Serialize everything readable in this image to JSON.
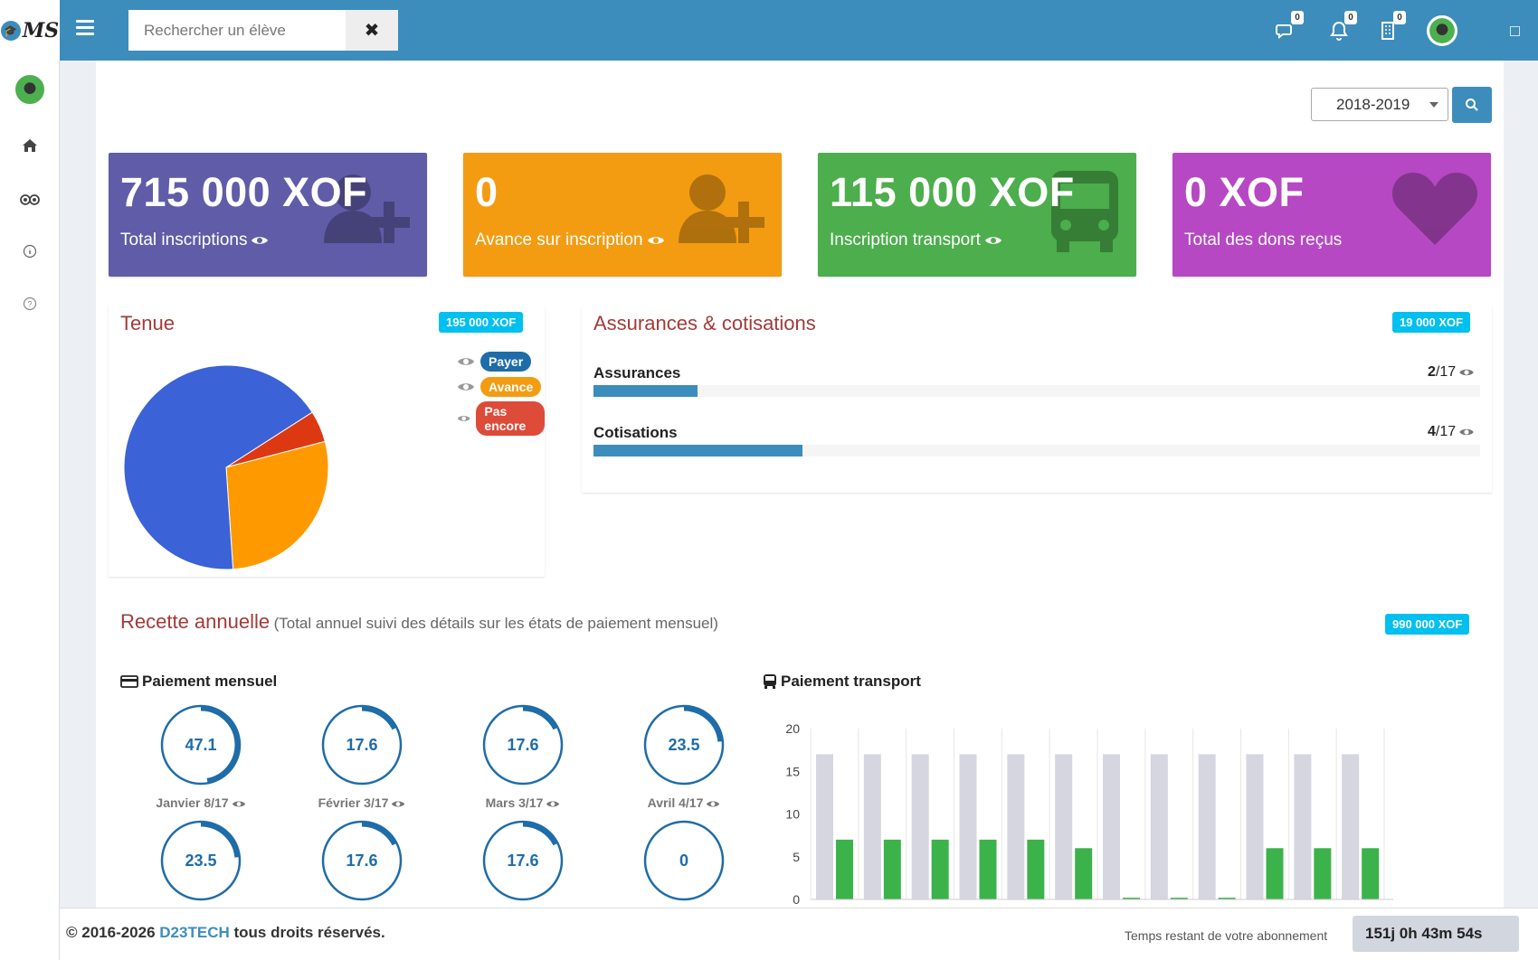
{
  "brand": {
    "logo_text": "MS"
  },
  "header": {
    "search_placeholder": "Rechercher un élève",
    "badges": {
      "messages": "0",
      "notifications": "0",
      "tasks": "0"
    }
  },
  "filter": {
    "year": "2018-2019"
  },
  "stats": [
    {
      "value": "715 000 XOF",
      "label": "Total inscriptions",
      "color": "#605ca8",
      "icon": "user-plus-icon"
    },
    {
      "value": "0",
      "label": "Avance sur inscription",
      "color": "#f39c12",
      "icon": "user-plus-icon"
    },
    {
      "value": "115 000 XOF",
      "label": "Inscription transport",
      "color": "#4cae4c",
      "icon": "bus-icon"
    },
    {
      "value": "0 XOF",
      "label": "Total des dons reçus",
      "color": "#b648c4",
      "icon": "heart-icon"
    }
  ],
  "tenue": {
    "title": "Tenue",
    "badge": "195 000 XOF",
    "legend": [
      {
        "label": "Payer",
        "color": "#1e6ca8"
      },
      {
        "label": "Avance",
        "color": "#f39c12"
      },
      {
        "label": "Pas encore",
        "color": "#dd4b39"
      }
    ],
    "chart_data": {
      "type": "pie",
      "slices": [
        {
          "name": "Payer",
          "value": 67,
          "color": "#3b62d6"
        },
        {
          "name": "Avance",
          "value": 28,
          "color": "#ff9900"
        },
        {
          "name": "Pas encore",
          "value": 5,
          "color": "#dc3912"
        }
      ]
    }
  },
  "assurances": {
    "title": "Assurances & cotisations",
    "badge": "19 000 XOF",
    "rows": [
      {
        "label": "Assurances",
        "done": "2",
        "total": "/17",
        "ratio": 0.1176
      },
      {
        "label": "Cotisations",
        "done": "4",
        "total": "/17",
        "ratio": 0.2353
      }
    ]
  },
  "recette": {
    "title": "Recette annuelle",
    "subtitle": "(Total annuel suivi des détails sur les états de paiement mensuel)",
    "badge": "990 000 XOF"
  },
  "paiement_mensuel": {
    "title": "Paiement mensuel",
    "months": [
      {
        "value": "47.1",
        "pct": 47.1,
        "label": "Janvier 8/17"
      },
      {
        "value": "17.6",
        "pct": 17.6,
        "label": "Février 3/17"
      },
      {
        "value": "17.6",
        "pct": 17.6,
        "label": "Mars 3/17"
      },
      {
        "value": "23.5",
        "pct": 23.5,
        "label": "Avril 4/17"
      },
      {
        "value": "23.5",
        "pct": 23.5,
        "label": ""
      },
      {
        "value": "17.6",
        "pct": 17.6,
        "label": ""
      },
      {
        "value": "17.6",
        "pct": 17.6,
        "label": ""
      },
      {
        "value": "0",
        "pct": 0,
        "label": ""
      }
    ]
  },
  "paiement_transport": {
    "title": "Paiement transport",
    "chart_data": {
      "type": "bar",
      "ylim": [
        0,
        20
      ],
      "yticks": [
        "0",
        "5",
        "10",
        "15",
        "20"
      ],
      "series": [
        {
          "values": [
            17,
            17,
            17,
            17,
            17,
            17,
            17,
            17,
            17,
            17,
            17,
            17
          ],
          "color": "#d5d6e0"
        },
        {
          "values": [
            7,
            7,
            7,
            7,
            7,
            6,
            0.2,
            0.2,
            0.2,
            6,
            6,
            6
          ],
          "color": "#3cb24b"
        }
      ]
    }
  },
  "footer": {
    "copyright_prefix": "© 2016-2026",
    "brand": "D23TECH",
    "copyright_suffix": "tous droits réservés.",
    "remaining_label": "Temps restant de votre abonnement",
    "timer": "151j 0h 43m 54s"
  }
}
